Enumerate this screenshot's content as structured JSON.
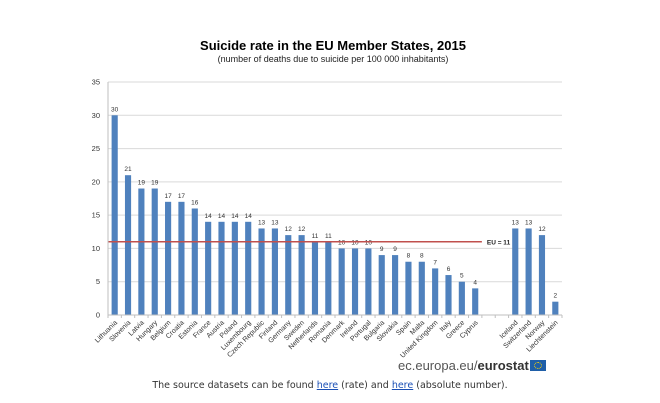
{
  "chart_data": {
    "type": "bar",
    "title": "Suicide rate in the EU Member States,  2015",
    "subtitle": "(number of deaths due to suicide per 100 000 inhabitants)",
    "xlabel": "",
    "ylabel": "",
    "ylim": [
      0,
      35
    ],
    "yticks": [
      0,
      5,
      10,
      15,
      20,
      25,
      30,
      35
    ],
    "grid": true,
    "bar_color": "#4f81bd",
    "categories": [
      "Lithuania",
      "Slovenia",
      "Latvia",
      "Hungary",
      "Belgium",
      "Croatia",
      "Estonia",
      "France",
      "Austria",
      "Poland",
      "Luxembourg",
      "Czech Republic",
      "Finland",
      "Germany",
      "Sweden",
      "Netherlands",
      "Romania",
      "Denmark",
      "Ireland",
      "Portugal",
      "Bulgaria",
      "Slovakia",
      "Spain",
      "Malta",
      "United Kingdom",
      "Italy",
      "Greece",
      "Cyprus",
      "",
      "",
      "Iceland",
      "Switzerland",
      "Norway",
      "Liechtenstein"
    ],
    "values": [
      30,
      21,
      19,
      19,
      17,
      17,
      16,
      14,
      14,
      14,
      14,
      13,
      13,
      12,
      12,
      11,
      11,
      10,
      10,
      10,
      9,
      9,
      8,
      8,
      7,
      6,
      5,
      4,
      null,
      null,
      13,
      13,
      12,
      2
    ],
    "reference_line": {
      "label": "EU = 11",
      "value": 11,
      "color": "#c0504d",
      "span": "EU member states"
    }
  },
  "branding": {
    "site": "ec.europa.eu/",
    "name": "eurostat",
    "flag_icon": "eu-flag-icon"
  },
  "footer": {
    "prefix": "The source datasets can be found ",
    "link1": "here",
    "middle": " (rate) and ",
    "link2": "here",
    "suffix": " (absolute number)."
  }
}
